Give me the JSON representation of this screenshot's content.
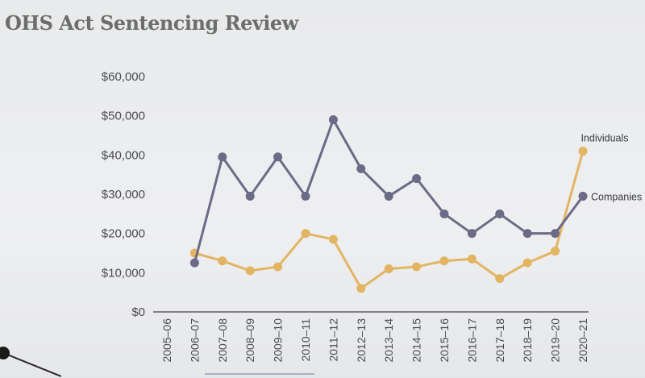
{
  "page": {
    "title": "OHS Act Sentencing Review"
  },
  "chart_data": {
    "type": "line",
    "title": "",
    "xlabel": "",
    "ylabel": "",
    "categories": [
      "2005–06",
      "2006–07",
      "2007–08",
      "2008–09",
      "2009–10",
      "2010–11",
      "2011–12",
      "2012–13",
      "2013–14",
      "2014–15",
      "2015–16",
      "2016–17",
      "2017–18",
      "2018–19",
      "2019–20",
      "2020–21"
    ],
    "ylim": [
      0,
      60000
    ],
    "yticks": [
      0,
      10000,
      20000,
      30000,
      40000,
      50000,
      60000
    ],
    "ytick_labels": [
      "$0",
      "$10,000",
      "$20,000",
      "$30,000",
      "$40,000",
      "$50,000",
      "$60,000"
    ],
    "grid": false,
    "legend": "inline-end-labels",
    "series": [
      {
        "name": "Companies",
        "color": "#6c6a86",
        "values": [
          null,
          12500,
          39500,
          29500,
          39500,
          29500,
          49000,
          36500,
          29500,
          34000,
          25000,
          20000,
          25000,
          20000,
          20000,
          29500
        ]
      },
      {
        "name": "Individuals",
        "color": "#e2b562",
        "values": [
          null,
          15000,
          13000,
          10500,
          11500,
          20000,
          18500,
          6000,
          11000,
          11500,
          13000,
          13500,
          8500,
          12500,
          15500,
          41000
        ]
      }
    ]
  }
}
